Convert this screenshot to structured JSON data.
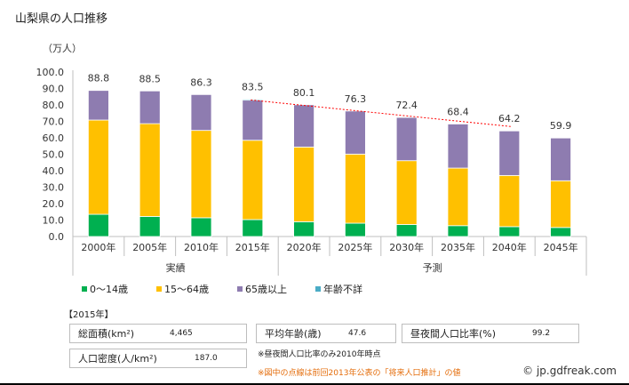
{
  "title": "山梨県の人口推移",
  "unit_label": "（万人）",
  "chart_data": {
    "type": "bar",
    "stacked": true,
    "title": "山梨県の人口推移",
    "xlabel": "",
    "ylabel": "（万人）",
    "ylim": [
      0,
      100
    ],
    "yticks": [
      "0.0",
      "10.0",
      "20.0",
      "30.0",
      "40.0",
      "50.0",
      "60.0",
      "70.0",
      "80.0",
      "90.0",
      "100.0"
    ],
    "categories": [
      "2000年",
      "2005年",
      "2010年",
      "2015年",
      "2020年",
      "2025年",
      "2030年",
      "2035年",
      "2040年",
      "2045年"
    ],
    "groups": [
      {
        "label": "実績",
        "from": 0,
        "to": 3
      },
      {
        "label": "予測",
        "from": 4,
        "to": 9
      }
    ],
    "series": [
      {
        "name": "0～14歳",
        "color": "#00b050",
        "values": [
          13.5,
          12.2,
          11.4,
          10.3,
          9.0,
          8.1,
          7.3,
          6.6,
          6.0,
          5.5
        ]
      },
      {
        "name": "15～64歳",
        "color": "#ffc000",
        "values": [
          57.3,
          56.4,
          53.1,
          48.2,
          45.4,
          42.0,
          38.8,
          35.0,
          31.1,
          28.4
        ]
      },
      {
        "name": "65歳以上",
        "color": "#8e7cb0",
        "values": [
          18.0,
          19.9,
          21.8,
          24.4,
          25.7,
          26.2,
          26.3,
          26.8,
          27.1,
          26.0
        ]
      },
      {
        "name": "年齢不詳",
        "color": "#4bacc6",
        "values": [
          0,
          0,
          0,
          0.6,
          0,
          0,
          0,
          0,
          0,
          0
        ]
      }
    ],
    "totals": [
      "88.8",
      "88.5",
      "86.3",
      "83.5",
      "80.1",
      "76.3",
      "72.4",
      "68.4",
      "64.2",
      "59.9"
    ],
    "previous_projection_line": {
      "style": "dashed",
      "color": "#ff0000",
      "from": {
        "category": "2015年",
        "value": 83.0
      },
      "to": {
        "category": "2040年",
        "value": 66.8
      }
    },
    "grid": false,
    "legend_position": "bottom"
  },
  "info": {
    "year_header": "【2015年】",
    "total_area_label": "総面積(km²)",
    "total_area_value": "4,465",
    "avg_age_label": "平均年齢(歳)",
    "avg_age_value": "47.6",
    "day_night_ratio_label": "昼夜間人口比率(%)",
    "day_night_ratio_value": "99.2",
    "density_label": "人口密度(人/km²)",
    "density_value": "187.0",
    "note1": "※昼夜間人口比率のみ2010年時点",
    "note2": "※図中の点線は前回2013年公表の「将来人口推計」の値",
    "copyright": "© jp.gdfreak.com"
  }
}
